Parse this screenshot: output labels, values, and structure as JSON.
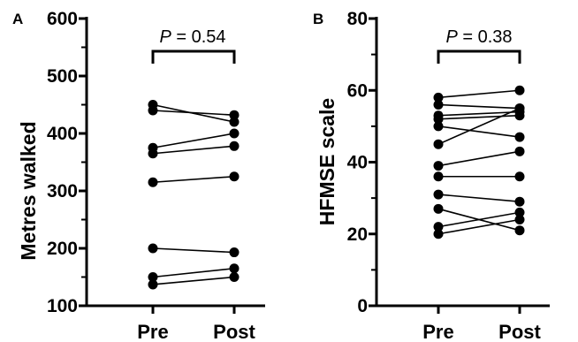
{
  "chart_data": [
    {
      "panel": "A",
      "type": "line",
      "categories": [
        "Pre",
        "Post"
      ],
      "ylabel": "Metres walked",
      "xlabel": "",
      "ylim": [
        100,
        600
      ],
      "yticks": [
        100,
        200,
        300,
        400,
        500,
        600
      ],
      "minor_yticks": [
        150,
        250,
        350,
        450,
        550
      ],
      "annotation": {
        "italic": "P",
        "rest": " = 0.54"
      },
      "series": [
        {
          "values": [
            450,
            420
          ]
        },
        {
          "values": [
            440,
            432
          ]
        },
        {
          "values": [
            375,
            400
          ]
        },
        {
          "values": [
            365,
            378
          ]
        },
        {
          "values": [
            315,
            325
          ]
        },
        {
          "values": [
            200,
            193
          ]
        },
        {
          "values": [
            150,
            165
          ]
        },
        {
          "values": [
            137,
            150
          ]
        }
      ]
    },
    {
      "panel": "B",
      "type": "line",
      "categories": [
        "Pre",
        "Post"
      ],
      "ylabel": "HFMSE scale",
      "xlabel": "",
      "ylim": [
        0,
        80
      ],
      "yticks": [
        0,
        20,
        40,
        60,
        80
      ],
      "minor_yticks": [
        10,
        30,
        50,
        70
      ],
      "annotation": {
        "italic": "P",
        "rest": " = 0.38"
      },
      "series": [
        {
          "values": [
            58,
            60
          ]
        },
        {
          "values": [
            56,
            55
          ]
        },
        {
          "values": [
            53,
            54
          ]
        },
        {
          "values": [
            52,
            53
          ]
        },
        {
          "values": [
            50,
            47
          ]
        },
        {
          "values": [
            45,
            55
          ]
        },
        {
          "values": [
            39,
            43
          ]
        },
        {
          "values": [
            36,
            36
          ]
        },
        {
          "values": [
            31,
            29
          ]
        },
        {
          "values": [
            27,
            21
          ]
        },
        {
          "values": [
            22,
            26
          ]
        },
        {
          "values": [
            20,
            24
          ]
        }
      ]
    }
  ]
}
